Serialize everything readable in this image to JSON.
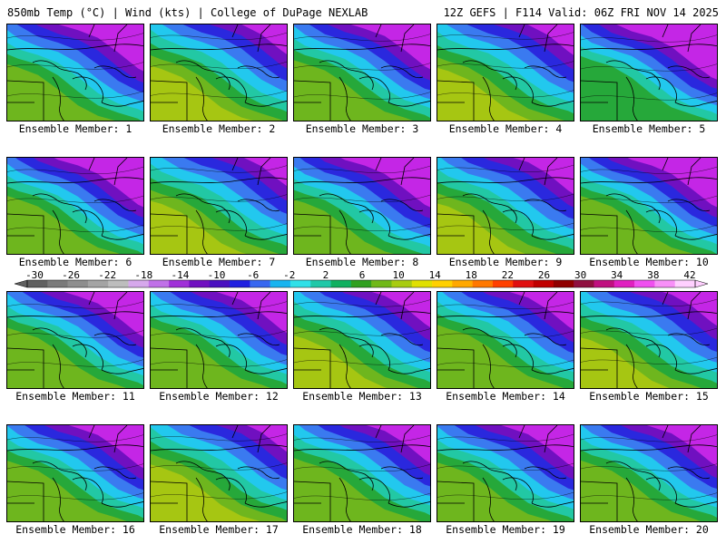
{
  "header": {
    "left": "850mb Temp (°C) | Wind (kts) | College of DuPage NEXLAB",
    "right": "12Z GEFS | F114 Valid: 06Z FRI NOV 14 2025"
  },
  "panels": [
    {
      "label": "Ensemble Member: 1",
      "warm": 0.55,
      "cold": 0.5
    },
    {
      "label": "Ensemble Member: 2",
      "warm": 0.7,
      "cold": 0.45
    },
    {
      "label": "Ensemble Member: 3",
      "warm": 0.45,
      "cold": 0.6
    },
    {
      "label": "Ensemble Member: 4",
      "warm": 0.75,
      "cold": 0.4
    },
    {
      "label": "Ensemble Member: 5",
      "warm": 0.3,
      "cold": 0.7
    },
    {
      "label": "Ensemble Member: 6",
      "warm": 0.4,
      "cold": 0.55
    },
    {
      "label": "Ensemble Member: 7",
      "warm": 0.8,
      "cold": 0.4
    },
    {
      "label": "Ensemble Member: 8",
      "warm": 0.55,
      "cold": 0.45
    },
    {
      "label": "Ensemble Member: 9",
      "warm": 0.7,
      "cold": 0.35
    },
    {
      "label": "Ensemble Member: 10",
      "warm": 0.4,
      "cold": 0.55
    },
    {
      "label": "Ensemble Member: 11",
      "warm": 0.45,
      "cold": 0.6
    },
    {
      "label": "Ensemble Member: 12",
      "warm": 0.55,
      "cold": 0.6
    },
    {
      "label": "Ensemble Member: 13",
      "warm": 0.65,
      "cold": 0.4
    },
    {
      "label": "Ensemble Member: 14",
      "warm": 0.55,
      "cold": 0.65
    },
    {
      "label": "Ensemble Member: 15",
      "warm": 0.75,
      "cold": 0.35
    },
    {
      "label": "Ensemble Member: 16",
      "warm": 0.5,
      "cold": 0.6
    },
    {
      "label": "Ensemble Member: 17",
      "warm": 0.7,
      "cold": 0.5
    },
    {
      "label": "Ensemble Member: 18",
      "warm": 0.55,
      "cold": 0.65
    },
    {
      "label": "Ensemble Member: 19",
      "warm": 0.6,
      "cold": 0.55
    },
    {
      "label": "Ensemble Member: 20",
      "warm": 0.55,
      "cold": 0.6
    }
  ],
  "colorbar": {
    "tick_labels": [
      "-30",
      "-26",
      "-22",
      "-18",
      "-14",
      "-10",
      "-6",
      "-2",
      "2",
      "6",
      "10",
      "14",
      "18",
      "22",
      "26",
      "30",
      "34",
      "38",
      "42"
    ],
    "colors": [
      "#606060",
      "#7a7a7a",
      "#8e8e8e",
      "#a4a4a4",
      "#bdbdbd",
      "#d6a8ec",
      "#c070e8",
      "#a030d8",
      "#7010c0",
      "#4a10c0",
      "#2020e0",
      "#3868f0",
      "#18b4f0",
      "#30e0e8",
      "#20c8a8",
      "#10b060",
      "#30a020",
      "#70b818",
      "#a8cc10",
      "#e0e000",
      "#ffd000",
      "#ffa800",
      "#ff7800",
      "#ff4000",
      "#e01010",
      "#c00000",
      "#900000",
      "#901040",
      "#c01080",
      "#e020c0",
      "#f050f0",
      "#f890f8",
      "#ffd0ff"
    ]
  },
  "colors": {
    "purple": "#c426e6",
    "violet": "#7010c0",
    "blue": "#2a28de",
    "lightblue": "#3a7af0",
    "cyan": "#22c8ee",
    "teal": "#22c8a4",
    "green": "#26a83a",
    "lime": "#6eb61e",
    "yellowgreen": "#a6c612",
    "yellow": "#e4dc00"
  }
}
